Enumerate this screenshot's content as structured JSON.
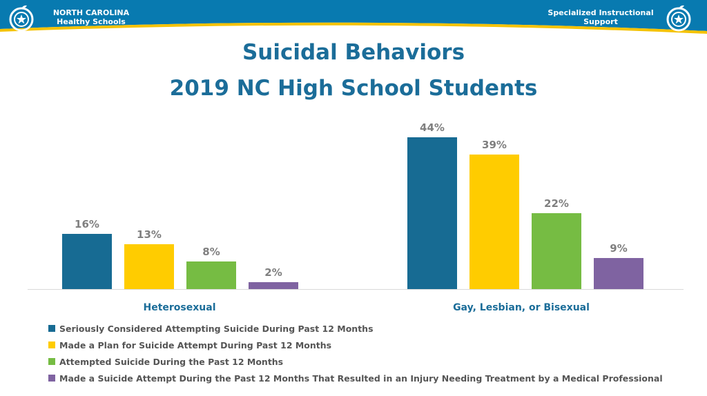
{
  "header": {
    "left_title_line1": "NORTH CAROLINA",
    "left_title_line2": "Healthy Schools",
    "right_title_line1": "Specialized Instructional",
    "right_title_line2": "Support",
    "logo_icon": "apple-star-logo-icon",
    "colors": {
      "band": "#087ab0",
      "accent": "#f5c200"
    }
  },
  "title_line1": "Suicidal Behaviors",
  "title_line2": "2019 NC High School Students",
  "chart_data": {
    "type": "bar",
    "title": "Suicidal Behaviors 2019 NC High School Students",
    "categories": [
      "Heterosexual",
      "Gay, Lesbian, or Bisexual"
    ],
    "value_suffix": "%",
    "ylim": [
      0,
      50
    ],
    "grid": false,
    "legend_position": "bottom-left",
    "series": [
      {
        "name": "Seriously Considered Attempting Suicide During Past 12 Months",
        "values": [
          16,
          44
        ],
        "color": "#176b93"
      },
      {
        "name": "Made a Plan for Suicide Attempt During Past 12 Months",
        "values": [
          13,
          39
        ],
        "color": "#ffcc00"
      },
      {
        "name": "Attempted Suicide During the Past 12 Months",
        "values": [
          8,
          22
        ],
        "color": "#76bc43"
      },
      {
        "name": "Made a Suicide Attempt During the Past 12 Months That Resulted in an Injury Needing Treatment by a Medical Professional",
        "values": [
          2,
          9
        ],
        "color": "#7f63a1"
      }
    ],
    "colors": {
      "category_label": "#1b6d99",
      "value_label": "#7f7f7f"
    }
  }
}
